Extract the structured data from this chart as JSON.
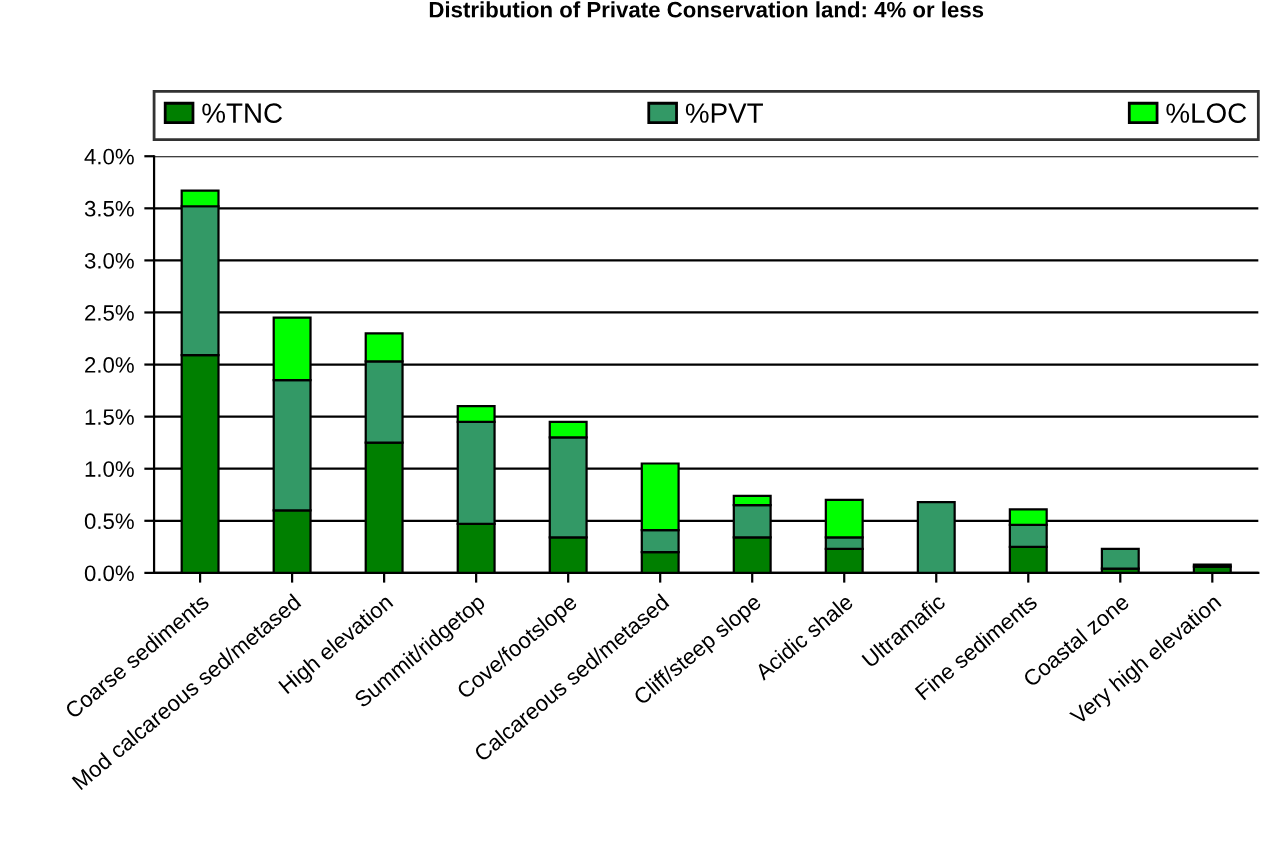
{
  "chart_data": {
    "type": "bar",
    "title": "Distribution of Private Conservation land: 4% or less",
    "stacked": true,
    "categories": [
      "Coarse sediments",
      "Mod calcareous sed/metased",
      "High elevation",
      "Summit/ridgetop",
      "Cove/footslope",
      "Calcareous sed/metased",
      "Cliff/steep slope",
      "Acidic shale",
      "Ultramafic",
      "Fine sediments",
      "Coastal zone",
      "Very high elevation"
    ],
    "series": [
      {
        "name": "%TNC",
        "color": "#007f00",
        "values": [
          2.09,
          0.6,
          1.25,
          0.47,
          0.34,
          0.2,
          0.34,
          0.23,
          0,
          0.25,
          0.04,
          0.06
        ]
      },
      {
        "name": "%PVT",
        "color": "#339966",
        "values": [
          1.43,
          1.25,
          0.78,
          0.98,
          0.96,
          0.21,
          0.31,
          0.11,
          0.68,
          0.21,
          0.19,
          0.02
        ]
      },
      {
        "name": "%LOC",
        "color": "#00ff00",
        "values": [
          0.15,
          0.6,
          0.27,
          0.15,
          0.15,
          0.64,
          0.09,
          0.36,
          0,
          0.15,
          0,
          0
        ]
      }
    ],
    "ylim": [
      0,
      4
    ],
    "yticks": [
      {
        "value": 0,
        "label": "0.0%"
      },
      {
        "value": 0.5,
        "label": "0.5%"
      },
      {
        "value": 1,
        "label": "1.0%"
      },
      {
        "value": 1.5,
        "label": "1.5%"
      },
      {
        "value": 2,
        "label": "2.0%"
      },
      {
        "value": 2.5,
        "label": "2.5%"
      },
      {
        "value": 3,
        "label": "3.0%"
      },
      {
        "value": 3.5,
        "label": "3.5%"
      },
      {
        "value": 4,
        "label": "4.0%"
      }
    ],
    "grid": "y",
    "legend": "top"
  }
}
